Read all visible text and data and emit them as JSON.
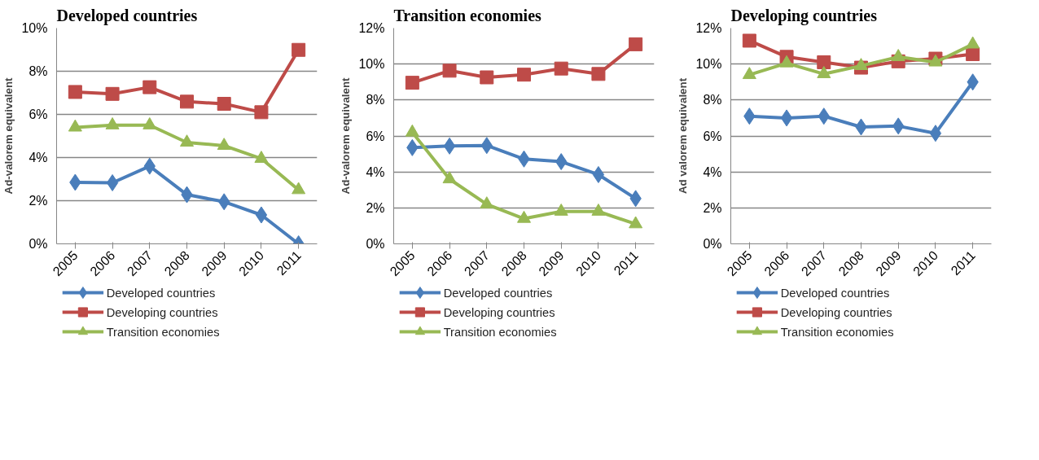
{
  "chart_data": [
    {
      "type": "line",
      "title": "Developed countries",
      "ylabel": "Ad-valorem equivalent",
      "categories": [
        "2005",
        "2006",
        "2007",
        "2008",
        "2009",
        "2010",
        "2011"
      ],
      "ylim": [
        0,
        10
      ],
      "yticks": [
        {
          "value": 0,
          "label": "0%"
        },
        {
          "value": 2,
          "label": "2%"
        },
        {
          "value": 4,
          "label": "4%"
        },
        {
          "value": 6,
          "label": "6%"
        },
        {
          "value": 8,
          "label": "8%"
        },
        {
          "value": 10,
          "label": "10%"
        }
      ],
      "grid": "y",
      "legend": "bottom",
      "series": [
        {
          "name": "Developed countries",
          "color": "#4a7ebb",
          "marker": "diamond",
          "values": [
            2.85,
            2.83,
            3.6,
            2.28,
            1.95,
            1.34,
            0
          ]
        },
        {
          "name": "Developing countries",
          "color": "#be4b48",
          "marker": "square",
          "values": [
            7.04,
            6.95,
            7.26,
            6.59,
            6.49,
            6.1,
            8.99
          ]
        },
        {
          "name": "Transition economies",
          "color": "#98b954",
          "marker": "triangle",
          "values": [
            5.4,
            5.5,
            5.5,
            4.7,
            4.55,
            3.95,
            2.5
          ]
        }
      ]
    },
    {
      "type": "line",
      "title": "Transition economies",
      "ylabel": "Ad-valorem equivalent",
      "categories": [
        "2005",
        "2006",
        "2007",
        "2008",
        "2009",
        "2010",
        "2011"
      ],
      "ylim": [
        0,
        12
      ],
      "yticks": [
        {
          "value": 0,
          "label": "0%"
        },
        {
          "value": 2,
          "label": "2%"
        },
        {
          "value": 4,
          "label": "4%"
        },
        {
          "value": 6,
          "label": "6%"
        },
        {
          "value": 8,
          "label": "8%"
        },
        {
          "value": 10,
          "label": "10%"
        },
        {
          "value": 12,
          "label": "12%"
        }
      ],
      "grid": "y",
      "legend": "bottom",
      "series": [
        {
          "name": "Developed countries",
          "color": "#4a7ebb",
          "marker": "diamond",
          "values": [
            5.35,
            5.44,
            5.47,
            4.72,
            4.57,
            3.85,
            2.52
          ]
        },
        {
          "name": "Developing countries",
          "color": "#be4b48",
          "marker": "square",
          "values": [
            8.96,
            9.63,
            9.26,
            9.41,
            9.75,
            9.45,
            11.1
          ]
        },
        {
          "name": "Transition economies",
          "color": "#98b954",
          "marker": "triangle",
          "values": [
            6.2,
            3.6,
            2.2,
            1.4,
            1.8,
            1.8,
            1.1
          ]
        }
      ]
    },
    {
      "type": "line",
      "title": "Developing countries",
      "ylabel": "Ad valorem equivalent",
      "categories": [
        "2005",
        "2006",
        "2007",
        "2008",
        "2009",
        "2010",
        "2011"
      ],
      "ylim": [
        0,
        12
      ],
      "yticks": [
        {
          "value": 0,
          "label": "0%"
        },
        {
          "value": 2,
          "label": "2%"
        },
        {
          "value": 4,
          "label": "4%"
        },
        {
          "value": 6,
          "label": "6%"
        },
        {
          "value": 8,
          "label": "8%"
        },
        {
          "value": 10,
          "label": "10%"
        },
        {
          "value": 12,
          "label": "12%"
        }
      ],
      "grid": "y",
      "legend": "bottom",
      "series": [
        {
          "name": "Developed countries",
          "color": "#4a7ebb",
          "marker": "diamond",
          "values": [
            7.1,
            7.0,
            7.1,
            6.5,
            6.55,
            6.15,
            9.0
          ]
        },
        {
          "name": "Developing countries",
          "color": "#be4b48",
          "marker": "square",
          "values": [
            11.3,
            10.4,
            10.1,
            9.8,
            10.15,
            10.3,
            10.55
          ]
        },
        {
          "name": "Transition economies",
          "color": "#98b954",
          "marker": "triangle",
          "values": [
            9.4,
            10.05,
            9.45,
            9.9,
            10.4,
            10.1,
            11.1
          ]
        }
      ]
    }
  ]
}
